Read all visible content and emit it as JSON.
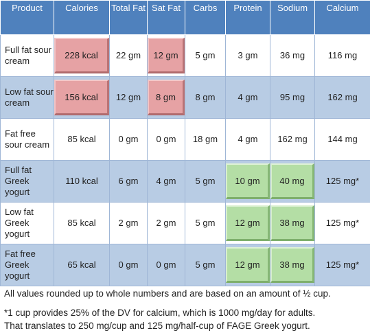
{
  "headers": [
    "Product",
    "Calories",
    "Total Fat",
    "Sat Fat",
    "Carbs",
    "Protein",
    "Sodium",
    "Calcium"
  ],
  "rows": [
    {
      "product": "Full fat sour cream",
      "calories": "228 kcal",
      "total_fat": "22 gm",
      "sat_fat": "12 gm",
      "carbs": "5 gm",
      "protein": "3 gm",
      "sodium": "36 mg",
      "calcium": "116 mg"
    },
    {
      "product": "Low fat sour cream",
      "calories": "156 kcal",
      "total_fat": "12 gm",
      "sat_fat": "8 gm",
      "carbs": "8 gm",
      "protein": "4 gm",
      "sodium": "95 mg",
      "calcium": "162 mg"
    },
    {
      "product": "Fat free sour cream",
      "calories": "85 kcal",
      "total_fat": "0 gm",
      "sat_fat": "0 gm",
      "carbs": "18 gm",
      "protein": "4 gm",
      "sodium": "162 mg",
      "calcium": "144 mg"
    },
    {
      "product": "Full fat Greek yogurt",
      "calories": "110 kcal",
      "total_fat": "6 gm",
      "sat_fat": "4 gm",
      "carbs": "5 gm",
      "protein": "10 gm",
      "sodium": "40 mg",
      "calcium": "125 mg*"
    },
    {
      "product": "Low fat Greek yogurt",
      "calories": "85 kcal",
      "total_fat": "2 gm",
      "sat_fat": "2 gm",
      "carbs": "5 gm",
      "protein": "12 gm",
      "sodium": "38 mg",
      "calcium": "125 mg*"
    },
    {
      "product": "Fat free Greek yogurt",
      "calories": "65 kcal",
      "total_fat": "0 gm",
      "sat_fat": "0 gm",
      "carbs": "5 gm",
      "protein": "12 gm",
      "sodium": "38 mg",
      "calcium": "125 mg*"
    }
  ],
  "footnotes": {
    "rounding": "All values rounded up to whole numbers and are based on an amount of ½ cup.",
    "calcium_line1": "*1 cup provides 25% of the DV for calcium, which is 1000 mg/day for adults.",
    "calcium_line2": "That translates to 250 mg/cup and 125 mg/half-cup of FAGE Greek yogurt."
  },
  "colors": {
    "header_bg": "#4f81bd",
    "alt_row_bg": "#b8cce4",
    "highlight_red": "#e6a2a4",
    "highlight_green": "#b4dea5"
  }
}
